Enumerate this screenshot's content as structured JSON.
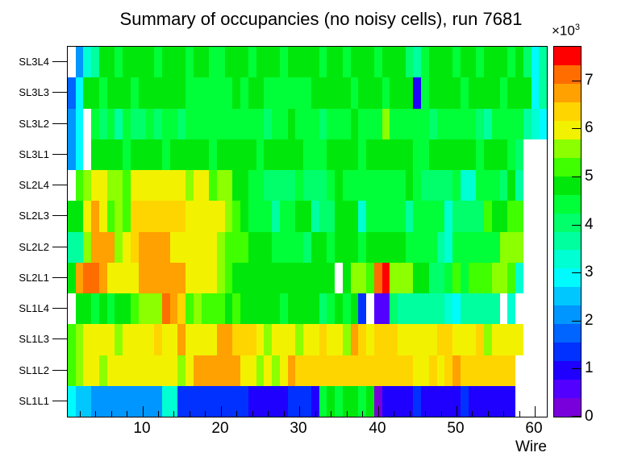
{
  "title": "Summary of occupancies (no noisy cells), run 7681",
  "axes": {
    "xlabel": "Wire",
    "x_ticks": [
      10,
      20,
      30,
      40,
      50,
      60
    ],
    "x_minor_step": 2,
    "z_ticks": [
      0,
      1,
      2,
      3,
      4,
      5,
      6,
      7
    ],
    "scale_base": "×10",
    "scale_exp": "3"
  },
  "palette": {
    "zmin": 0,
    "zmax": 7.7,
    "colors": [
      "#7a00db",
      "#5200ff",
      "#1f00ff",
      "#0031ff",
      "#0064ff",
      "#0096ff",
      "#00c8ff",
      "#00fbff",
      "#00ffd2",
      "#00ff9f",
      "#00ff6b",
      "#00ff38",
      "#00e80b",
      "#3fff00",
      "#8cff00",
      "#f2f200",
      "#ffd500",
      "#ffa100",
      "#ff6d00",
      "#ff0000"
    ]
  },
  "chart_data": {
    "type": "heatmap",
    "title": "Summary of occupancies (no noisy cells), run 7681",
    "xlabel": "Wire",
    "x_range": [
      1,
      61
    ],
    "values_unit": "×10³",
    "zlim": [
      0,
      7.7
    ],
    "rows_top_to_bottom": true,
    "rows": [
      {
        "label": "SL3L4",
        "values": [
          null,
          2.1,
          3.3,
          3.7,
          4.8,
          4.8,
          4.4,
          4.8,
          4.8,
          4.8,
          4.8,
          4.4,
          4.8,
          4.8,
          4.8,
          4.4,
          4.8,
          4.8,
          4.4,
          4.4,
          4.8,
          4.8,
          4.8,
          4.4,
          4.8,
          4.8,
          4.8,
          4.4,
          4.8,
          4.8,
          4.8,
          4.8,
          4.4,
          4.8,
          4.8,
          4.4,
          4.8,
          4.8,
          4.8,
          4.4,
          4.8,
          4.8,
          4.8,
          4.0,
          3.7,
          4.4,
          4.8,
          4.8,
          4.8,
          4.4,
          4.8,
          4.8,
          4.4,
          4.8,
          4.8,
          4.8,
          4.4,
          4.8,
          4.0,
          2.9,
          3.7
        ]
      },
      {
        "label": "SL3L3",
        "values": [
          1.7,
          2.9,
          4.8,
          4.8,
          4.4,
          4.8,
          4.8,
          4.8,
          4.4,
          4.8,
          4.8,
          4.8,
          4.8,
          4.8,
          4.8,
          4.4,
          4.4,
          4.4,
          4.4,
          4.4,
          4.4,
          4.8,
          4.4,
          4.8,
          4.8,
          4.4,
          4.4,
          4.4,
          4.4,
          4.4,
          4.4,
          4.8,
          4.8,
          4.8,
          4.8,
          4.8,
          4.4,
          4.8,
          4.8,
          4.8,
          4.4,
          4.8,
          4.8,
          4.8,
          0.9,
          4.4,
          4.8,
          4.8,
          4.8,
          4.8,
          4.4,
          4.8,
          4.8,
          4.8,
          4.8,
          4.4,
          4.8,
          4.8,
          4.8,
          2.9,
          3.7
        ]
      },
      {
        "label": "SL3L2",
        "values": [
          2.0,
          2.9,
          null,
          4.4,
          4.0,
          4.4,
          3.7,
          4.4,
          4.0,
          4.0,
          4.4,
          4.0,
          4.4,
          4.4,
          4.0,
          4.4,
          4.4,
          4.4,
          4.4,
          4.4,
          4.4,
          4.4,
          4.4,
          4.4,
          4.4,
          4.0,
          4.4,
          4.4,
          4.8,
          4.4,
          4.4,
          4.4,
          4.0,
          4.4,
          4.4,
          4.4,
          4.8,
          4.4,
          4.4,
          4.4,
          5.6,
          4.4,
          4.4,
          4.4,
          4.4,
          4.4,
          4.0,
          4.4,
          4.4,
          4.4,
          4.4,
          4.4,
          4.0,
          3.7,
          4.4,
          4.4,
          4.4,
          4.4,
          3.7,
          3.3,
          2.9
        ]
      },
      {
        "label": "SL3L1",
        "values": [
          2.0,
          2.9,
          null,
          4.8,
          4.8,
          4.8,
          4.8,
          4.4,
          4.8,
          4.8,
          4.8,
          4.8,
          4.4,
          4.8,
          4.8,
          4.8,
          4.8,
          4.8,
          4.4,
          4.8,
          4.8,
          4.8,
          4.8,
          4.8,
          4.4,
          4.8,
          4.8,
          4.8,
          4.8,
          4.8,
          4.4,
          4.4,
          4.4,
          4.8,
          4.8,
          4.8,
          4.8,
          4.4,
          4.8,
          4.8,
          4.8,
          4.8,
          4.8,
          4.8,
          4.4,
          4.4,
          4.8,
          4.8,
          4.8,
          4.8,
          4.8,
          4.8,
          4.4,
          4.8,
          4.8,
          4.8,
          4.4,
          4.0,
          null,
          null,
          null
        ]
      },
      {
        "label": "SL2L4",
        "values": [
          null,
          5.2,
          5.6,
          6.0,
          6.0,
          5.6,
          5.6,
          5.2,
          6.0,
          6.0,
          6.0,
          6.0,
          6.0,
          6.0,
          6.0,
          5.6,
          6.0,
          6.0,
          5.2,
          5.6,
          5.6,
          4.8,
          4.8,
          4.4,
          4.4,
          4.0,
          4.0,
          4.0,
          4.0,
          4.4,
          4.0,
          4.0,
          4.0,
          4.4,
          4.8,
          4.4,
          4.4,
          4.4,
          4.4,
          4.4,
          4.4,
          4.4,
          4.4,
          4.8,
          4.4,
          4.0,
          4.0,
          4.0,
          4.0,
          4.4,
          3.3,
          3.3,
          4.4,
          4.4,
          4.4,
          4.0,
          4.8,
          3.7,
          null,
          null,
          null
        ]
      },
      {
        "label": "SL2L3",
        "values": [
          4.8,
          4.8,
          6.0,
          6.7,
          6.0,
          5.2,
          5.6,
          5.2,
          6.3,
          6.3,
          6.3,
          6.3,
          6.3,
          6.3,
          6.3,
          6.0,
          6.0,
          6.0,
          6.0,
          6.0,
          5.6,
          5.2,
          4.8,
          4.4,
          4.4,
          4.4,
          3.7,
          4.4,
          4.4,
          4.8,
          4.8,
          3.7,
          4.0,
          4.0,
          4.8,
          4.8,
          4.8,
          3.3,
          4.4,
          4.4,
          4.4,
          4.4,
          4.4,
          3.7,
          4.4,
          4.4,
          4.4,
          4.4,
          3.3,
          4.0,
          4.0,
          4.0,
          4.0,
          5.2,
          4.8,
          4.8,
          5.2,
          5.2,
          null,
          null,
          null
        ]
      },
      {
        "label": "SL2L2",
        "values": [
          3.7,
          3.7,
          5.6,
          6.7,
          6.7,
          6.7,
          5.6,
          6.0,
          6.3,
          6.7,
          6.7,
          6.7,
          6.7,
          6.0,
          6.0,
          6.0,
          6.0,
          6.0,
          6.0,
          5.6,
          5.2,
          5.2,
          5.2,
          4.8,
          4.8,
          4.8,
          4.4,
          4.4,
          4.4,
          4.4,
          4.0,
          4.8,
          4.8,
          4.4,
          4.8,
          4.8,
          4.8,
          4.4,
          4.8,
          4.8,
          4.8,
          4.8,
          4.8,
          4.4,
          4.4,
          4.4,
          4.4,
          3.7,
          3.3,
          4.4,
          4.4,
          4.4,
          4.4,
          4.4,
          4.4,
          5.6,
          5.6,
          5.6,
          null,
          null,
          null
        ]
      },
      {
        "label": "SL2L1",
        "values": [
          4.8,
          6.7,
          7.1,
          7.1,
          6.7,
          6.0,
          6.0,
          6.0,
          6.0,
          6.7,
          6.7,
          6.7,
          6.7,
          6.7,
          6.7,
          6.0,
          6.0,
          6.0,
          6.0,
          5.6,
          5.2,
          4.8,
          4.8,
          4.8,
          4.8,
          4.8,
          4.8,
          4.8,
          4.8,
          4.8,
          4.8,
          4.8,
          4.8,
          4.8,
          null,
          4.8,
          5.6,
          5.6,
          5.2,
          7.0,
          7.5,
          5.6,
          5.6,
          5.6,
          4.8,
          4.8,
          4.0,
          4.0,
          4.4,
          5.2,
          4.4,
          5.2,
          5.2,
          5.2,
          5.6,
          5.6,
          5.2,
          3.3,
          null,
          null,
          null
        ]
      },
      {
        "label": "SL1L4",
        "values": [
          null,
          4.8,
          4.8,
          4.4,
          4.8,
          4.4,
          4.8,
          4.8,
          5.2,
          5.6,
          5.6,
          5.6,
          7.1,
          6.7,
          6.3,
          5.2,
          5.6,
          5.2,
          5.2,
          5.2,
          4.8,
          5.2,
          4.8,
          4.8,
          4.8,
          4.8,
          4.8,
          4.4,
          4.8,
          4.8,
          4.8,
          4.8,
          4.0,
          4.4,
          4.8,
          4.4,
          4.8,
          1.2,
          null,
          0.5,
          0.5,
          4.0,
          3.7,
          3.7,
          3.7,
          3.7,
          3.7,
          3.7,
          3.3,
          2.9,
          3.7,
          3.7,
          3.7,
          3.7,
          3.7,
          null,
          3.3,
          null,
          null,
          null,
          null
        ]
      },
      {
        "label": "SL1L3",
        "values": [
          5.2,
          5.6,
          6.0,
          6.0,
          6.0,
          6.0,
          5.6,
          6.0,
          6.0,
          6.0,
          6.0,
          6.3,
          6.0,
          6.0,
          6.7,
          6.0,
          6.0,
          6.0,
          6.0,
          6.7,
          6.7,
          6.3,
          6.3,
          6.3,
          6.0,
          5.6,
          6.0,
          6.0,
          6.0,
          5.6,
          6.0,
          6.0,
          6.3,
          6.0,
          6.0,
          5.6,
          6.7,
          6.3,
          6.0,
          6.3,
          6.3,
          6.3,
          6.0,
          6.0,
          6.0,
          6.0,
          6.0,
          6.3,
          6.3,
          6.0,
          6.0,
          6.0,
          6.3,
          5.6,
          6.0,
          6.0,
          6.0,
          6.0,
          null,
          null,
          null
        ]
      },
      {
        "label": "SL1L2",
        "values": [
          5.2,
          5.6,
          6.0,
          6.0,
          5.6,
          6.0,
          6.0,
          6.0,
          6.0,
          6.0,
          6.0,
          6.0,
          6.0,
          6.0,
          5.6,
          6.0,
          6.7,
          6.7,
          6.7,
          6.7,
          6.7,
          6.7,
          6.0,
          6.0,
          5.6,
          6.0,
          5.6,
          6.0,
          6.7,
          6.3,
          6.3,
          6.3,
          6.3,
          6.3,
          6.3,
          6.3,
          6.3,
          6.3,
          6.3,
          6.3,
          6.3,
          6.3,
          6.3,
          6.3,
          6.0,
          6.0,
          6.3,
          6.0,
          6.3,
          6.7,
          6.3,
          6.3,
          6.3,
          6.3,
          6.3,
          6.3,
          6.3,
          null,
          null,
          null,
          null
        ]
      },
      {
        "label": "SL1L1",
        "values": [
          2.9,
          2.5,
          2.5,
          2.1,
          2.1,
          2.1,
          2.1,
          2.1,
          2.1,
          2.1,
          2.1,
          2.1,
          3.3,
          3.3,
          1.5,
          1.5,
          1.5,
          1.5,
          1.5,
          1.5,
          1.5,
          1.5,
          1.5,
          1.1,
          1.1,
          1.1,
          1.1,
          1.1,
          1.5,
          1.3,
          1.3,
          1.1,
          4.4,
          4.8,
          4.4,
          4.8,
          4.8,
          4.4,
          4.8,
          0.2,
          1.0,
          1.0,
          1.0,
          1.0,
          1.3,
          1.0,
          1.0,
          1.0,
          1.0,
          1.0,
          1.3,
          1.0,
          1.0,
          1.0,
          1.0,
          1.0,
          1.0,
          null,
          null,
          null,
          null
        ]
      }
    ]
  }
}
